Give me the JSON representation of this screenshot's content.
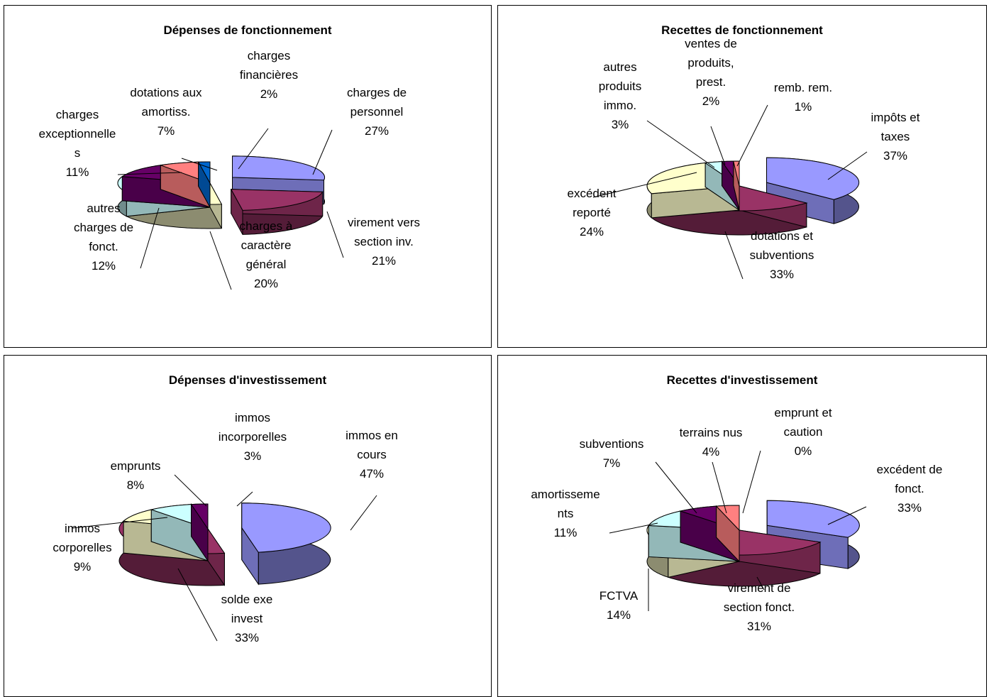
{
  "chart_data": [
    {
      "type": "pie",
      "title": "Dépenses de fonctionnement",
      "slices": [
        {
          "label": "charges de personnel",
          "value": 27,
          "pct_label": "27%",
          "color": "#9999ff",
          "exploded": true
        },
        {
          "label": "virement vers section inv.",
          "value": 21,
          "pct_label": "21%",
          "color": "#993366",
          "exploded": true
        },
        {
          "label": "charges à caractère général",
          "value": 20,
          "pct_label": "20%",
          "color": "#ffffcc"
        },
        {
          "label": "autres charges de fonct.",
          "value": 12,
          "pct_label": "12%",
          "color": "#ccffff"
        },
        {
          "label": "charges exceptionnelles",
          "value": 11,
          "pct_label": "11%",
          "color": "#660066"
        },
        {
          "label": "dotations aux amortiss.",
          "value": 7,
          "pct_label": "7%",
          "color": "#ff8080"
        },
        {
          "label": "charges financières",
          "value": 2,
          "pct_label": "2%",
          "color": "#0066cc"
        }
      ]
    },
    {
      "type": "pie",
      "title": "Recettes de fonctionnement",
      "slices": [
        {
          "label": "impôts et taxes",
          "value": 37,
          "pct_label": "37%",
          "color": "#9999ff",
          "exploded": true
        },
        {
          "label": "dotations et subventions",
          "value": 33,
          "pct_label": "33%",
          "color": "#993366"
        },
        {
          "label": "excédent reporté",
          "value": 24,
          "pct_label": "24%",
          "color": "#ffffcc"
        },
        {
          "label": "autres produits immo.",
          "value": 3,
          "pct_label": "3%",
          "color": "#ccffff"
        },
        {
          "label": "ventes de produits, prest.",
          "value": 2,
          "pct_label": "2%",
          "color": "#660066"
        },
        {
          "label": "remb. rem.",
          "value": 1,
          "pct_label": "1%",
          "color": "#ff8080"
        }
      ]
    },
    {
      "type": "pie",
      "title": "Dépenses d'investissement",
      "slices": [
        {
          "label": "immos en cours",
          "value": 47,
          "pct_label": "47%",
          "color": "#9999ff",
          "exploded": true
        },
        {
          "label": "solde exe invest",
          "value": 33,
          "pct_label": "33%",
          "color": "#993366"
        },
        {
          "label": "immos corporelles",
          "value": 9,
          "pct_label": "9%",
          "color": "#ffffcc"
        },
        {
          "label": "emprunts",
          "value": 8,
          "pct_label": "8%",
          "color": "#ccffff"
        },
        {
          "label": "immos incorporelles",
          "value": 3,
          "pct_label": "3%",
          "color": "#660066"
        }
      ]
    },
    {
      "type": "pie",
      "title": "Recettes d'investissement",
      "slices": [
        {
          "label": "excédent de fonct.",
          "value": 33,
          "pct_label": "33%",
          "color": "#9999ff",
          "exploded": true
        },
        {
          "label": "virement de section fonct.",
          "value": 31,
          "pct_label": "31%",
          "color": "#993366"
        },
        {
          "label": "FCTVA",
          "value": 14,
          "pct_label": "14%",
          "color": "#ffffcc"
        },
        {
          "label": "amortissements",
          "value": 11,
          "pct_label": "11%",
          "color": "#ccffff"
        },
        {
          "label": "subventions",
          "value": 7,
          "pct_label": "7%",
          "color": "#660066"
        },
        {
          "label": "terrains nus",
          "value": 4,
          "pct_label": "4%",
          "color": "#ff8080"
        },
        {
          "label": "emprunt et caution",
          "value": 0,
          "pct_label": "0%",
          "color": "#0066cc"
        }
      ]
    }
  ],
  "labels": [
    [
      {
        "lines": [
          "charges de",
          "personnel",
          "27%"
        ]
      },
      {
        "lines": [
          "virement vers",
          "section inv.",
          "21%"
        ]
      },
      {
        "lines": [
          "charges à",
          "caractère",
          "général",
          "20%"
        ]
      },
      {
        "lines": [
          "autres",
          "charges de",
          "fonct.",
          "12%"
        ]
      },
      {
        "lines": [
          "charges",
          "exceptionnelle",
          "s",
          "11%"
        ]
      },
      {
        "lines": [
          "dotations aux",
          "amortiss.",
          "7%"
        ]
      },
      {
        "lines": [
          "charges",
          "financières",
          "2%"
        ]
      }
    ],
    [
      {
        "lines": [
          "impôts et",
          "taxes",
          "37%"
        ]
      },
      {
        "lines": [
          "dotations et",
          "subventions",
          "33%"
        ]
      },
      {
        "lines": [
          "excédent",
          "reporté",
          "24%"
        ]
      },
      {
        "lines": [
          "autres",
          "produits",
          "immo.",
          "3%"
        ]
      },
      {
        "lines": [
          "ventes de",
          "produits,",
          "prest.",
          "2%"
        ]
      },
      {
        "lines": [
          "remb. rem.",
          "1%"
        ]
      }
    ],
    [
      {
        "lines": [
          "immos en",
          "cours",
          "47%"
        ]
      },
      {
        "lines": [
          "solde exe",
          "invest",
          "33%"
        ]
      },
      {
        "lines": [
          "immos",
          "corporelles",
          "9%"
        ]
      },
      {
        "lines": [
          "emprunts",
          "8%"
        ]
      },
      {
        "lines": [
          "immos",
          "incorporelles",
          "3%"
        ]
      }
    ],
    [
      {
        "lines": [
          "excédent de",
          "fonct.",
          "33%"
        ]
      },
      {
        "lines": [
          "virement de",
          "section fonct.",
          "31%"
        ]
      },
      {
        "lines": [
          "FCTVA",
          "14%"
        ]
      },
      {
        "lines": [
          "amortisseme",
          "nts",
          "11%"
        ]
      },
      {
        "lines": [
          "subventions",
          "7%"
        ]
      },
      {
        "lines": [
          "terrains nus",
          "4%"
        ]
      },
      {
        "lines": [
          "emprunt et",
          "caution",
          "0%"
        ]
      }
    ]
  ]
}
